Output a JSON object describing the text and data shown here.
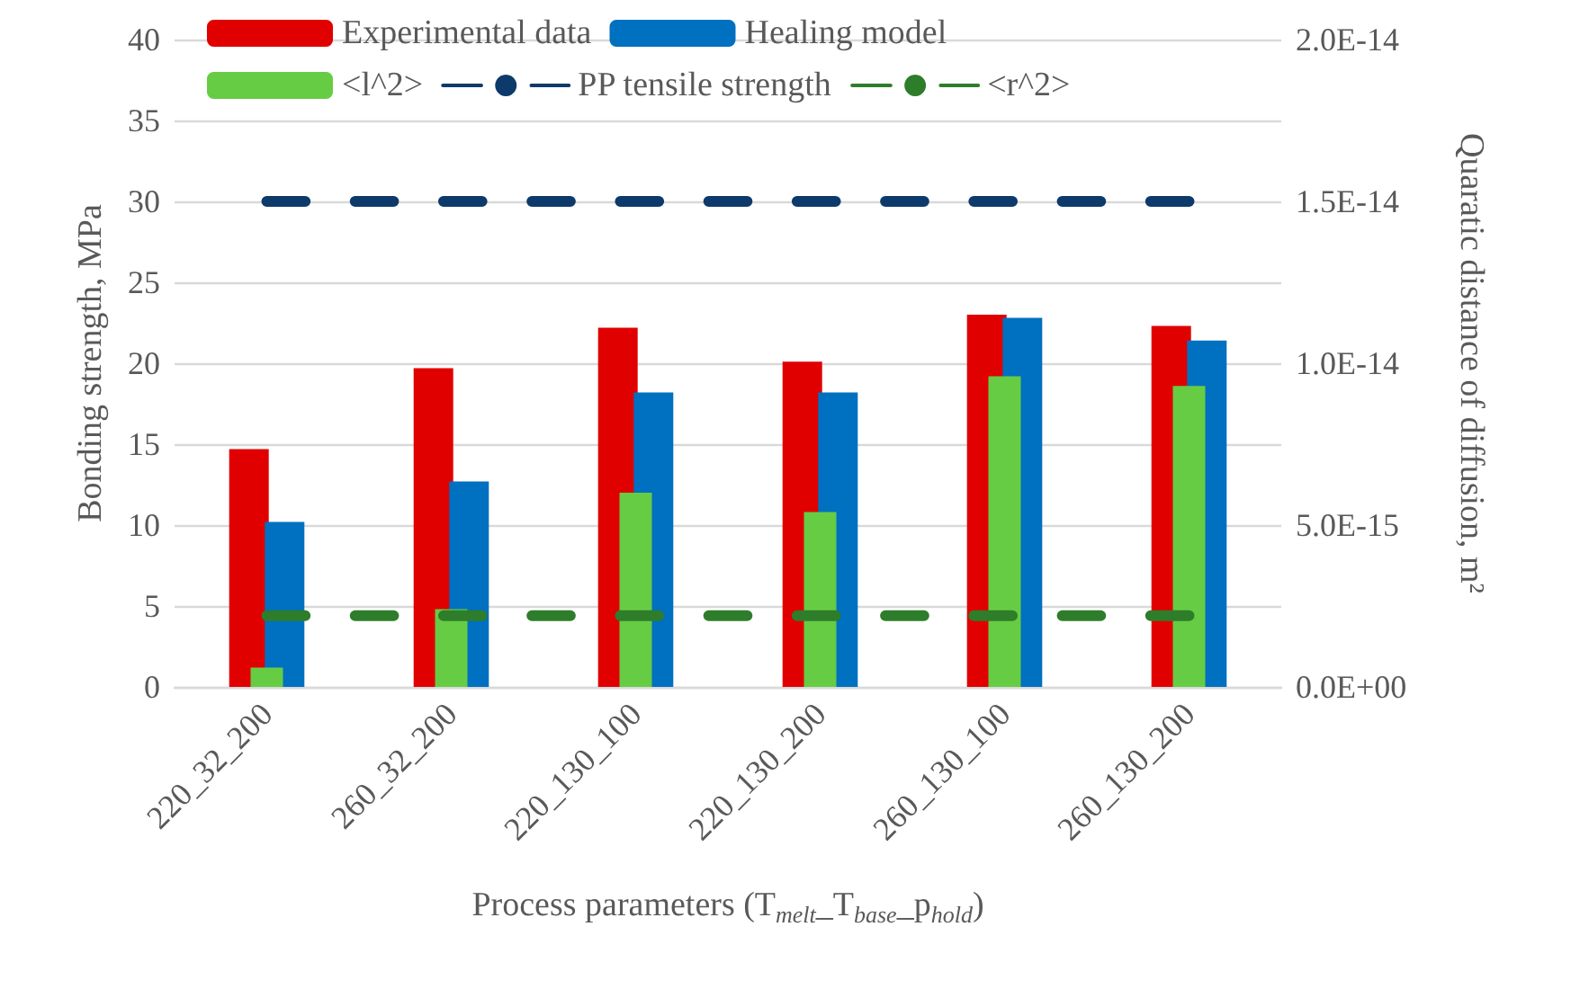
{
  "chart_data": {
    "type": "bar",
    "xlabel": "Process parameters (T$_{melt}$_T$_{base}$_p$_{hold}$)",
    "ylabel": "Bonding strength, MPa",
    "y2label": "Quaratic distance of diffusion, m²",
    "categories": [
      "220_32_200",
      "260_32_200",
      "220_130_100",
      "220_130_200",
      "260_130_100",
      "260_130_200"
    ],
    "series": [
      {
        "name": "Experimental data",
        "color": "#e00000",
        "values": [
          14.7,
          19.7,
          22.2,
          20.1,
          23.0,
          22.3
        ]
      },
      {
        "name": "Healing model",
        "color": "#0070c0",
        "values": [
          10.2,
          12.7,
          18.2,
          18.2,
          22.8,
          21.4
        ]
      },
      {
        "name": "<l^2>",
        "axis": "y2",
        "color": "#66cc44",
        "values": [
          6e-16,
          2.4e-15,
          6e-15,
          5.4e-15,
          9.6e-15,
          9.3e-15
        ]
      },
      {
        "name": "PP tensile strength",
        "type": "line",
        "color": "#0d3a6b",
        "line_style": "dashed",
        "marker": "none",
        "values": [
          30,
          30,
          30,
          30,
          30,
          30
        ]
      },
      {
        "name": "<r^2>",
        "type": "line",
        "axis": "y2",
        "color": "#2e7d2a",
        "line_style": "dashed",
        "marker": "none",
        "values": [
          2.2e-15,
          2.2e-15,
          2.2e-15,
          2.2e-15,
          2.2e-15,
          2.2e-15
        ]
      }
    ],
    "ylim": [
      0,
      40
    ],
    "yticks": [
      0,
      5,
      10,
      15,
      20,
      25,
      30,
      35,
      40
    ],
    "y2lim": [
      0,
      2e-14
    ],
    "y2ticks": [
      {
        "value": 0,
        "label": "0.0E+00"
      },
      {
        "value": 5e-15,
        "label": "5.0E-15"
      },
      {
        "value": 1e-14,
        "label": "1.0E-14"
      },
      {
        "value": 1.5e-14,
        "label": "1.5E-14"
      },
      {
        "value": 2e-14,
        "label": "2.0E-14"
      }
    ],
    "grid": "y",
    "legend": "top"
  }
}
